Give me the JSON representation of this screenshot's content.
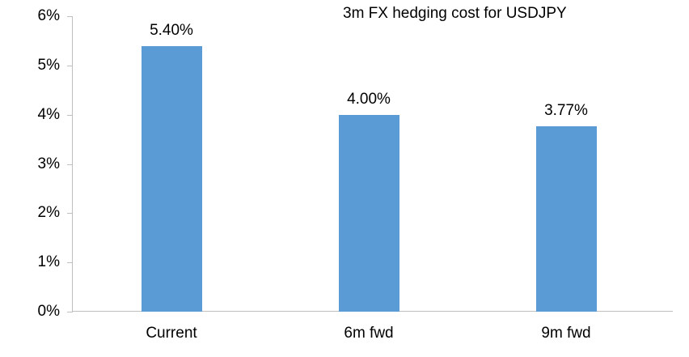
{
  "chart_data": {
    "type": "bar",
    "title": "3m FX hedging cost for USDJPY",
    "categories": [
      "Current",
      "6m fwd",
      "9m fwd"
    ],
    "values": [
      5.4,
      4.0,
      3.77
    ],
    "data_labels": [
      "5.40%",
      "4.00%",
      "3.77%"
    ],
    "xlabel": "",
    "ylabel": "",
    "ylim": [
      0,
      6
    ],
    "ytick_step": 1,
    "ytick_labels": [
      "0%",
      "1%",
      "2%",
      "3%",
      "4%",
      "5%",
      "6%"
    ],
    "grid": false,
    "legend": "none",
    "bar_color": "#5B9BD5",
    "axis_color": "#BFBFBF",
    "text_color": "#000000"
  }
}
